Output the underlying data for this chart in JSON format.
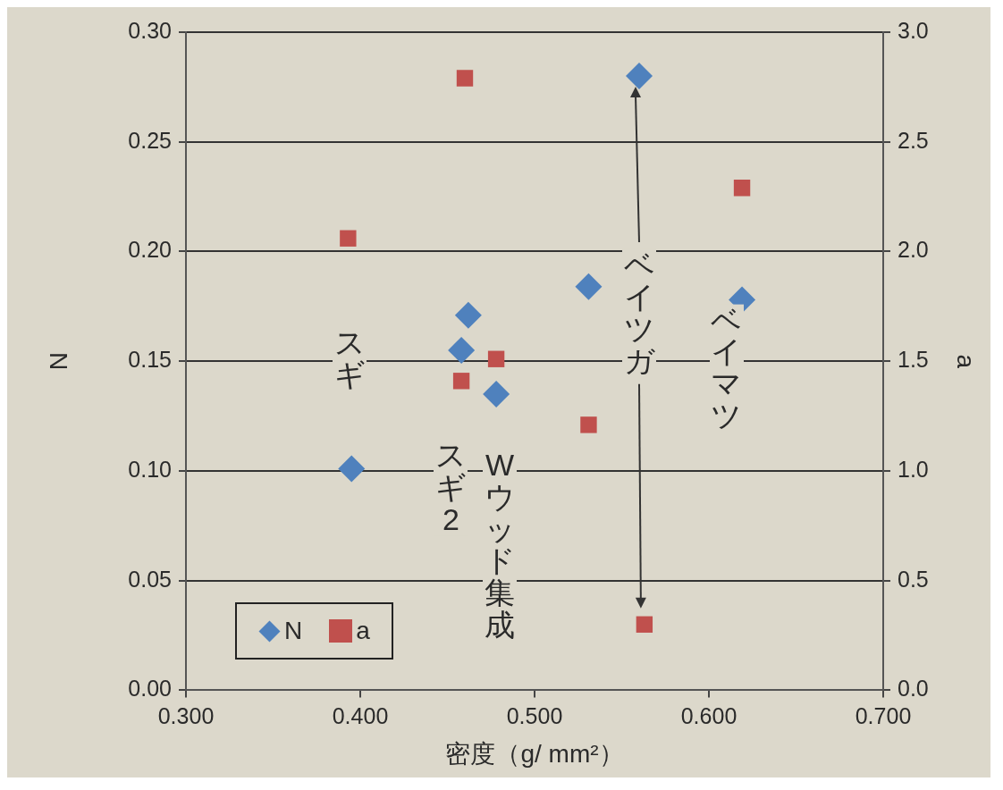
{
  "chart_data": {
    "type": "scatter",
    "xlabel": "密度（g/ mm²）",
    "ylabel": "N",
    "y2label": "a",
    "series": [
      {
        "name": "N",
        "color": "#4f81bd",
        "marker": "diamond",
        "x": [
          0.395,
          0.462,
          0.458,
          0.478,
          0.531,
          0.56,
          0.619
        ],
        "values": [
          0.101,
          0.171,
          0.155,
          0.135,
          0.184,
          0.28,
          0.178
        ]
      },
      {
        "name": "a",
        "color": "#c0504d",
        "marker": "square",
        "axis": "y2",
        "x": [
          0.393,
          0.46,
          0.458,
          0.478,
          0.531,
          0.563,
          0.619
        ],
        "values": [
          2.06,
          2.79,
          1.41,
          1.51,
          1.21,
          0.3,
          2.29
        ]
      }
    ],
    "xlim": [
      0.3,
      0.7
    ],
    "xticks": [
      {
        "value": 0.3,
        "label": "0.300"
      },
      {
        "value": 0.4,
        "label": "0.400"
      },
      {
        "value": 0.5,
        "label": "0.500"
      },
      {
        "value": 0.6,
        "label": "0.600"
      },
      {
        "value": 0.7,
        "label": "0.700"
      }
    ],
    "ylim": [
      0,
      0.3
    ],
    "yticks": [
      {
        "value": 0,
        "label": "0.00"
      },
      {
        "value": 0.05,
        "label": "0.05"
      },
      {
        "value": 0.1,
        "label": "0.10"
      },
      {
        "value": 0.15,
        "label": "0.15"
      },
      {
        "value": 0.2,
        "label": "0.20"
      },
      {
        "value": 0.25,
        "label": "0.25"
      },
      {
        "value": 0.3,
        "label": "0.30"
      }
    ],
    "y2lim": [
      0,
      3
    ],
    "y2ticks": [
      {
        "value": 0,
        "label": "0.0"
      },
      {
        "value": 0.5,
        "label": "0.5"
      },
      {
        "value": 1,
        "label": "1.0"
      },
      {
        "value": 1.5,
        "label": "1.5"
      },
      {
        "value": 2,
        "label": "2.0"
      },
      {
        "value": 2.5,
        "label": "2.5"
      },
      {
        "value": 3,
        "label": "3.0"
      }
    ],
    "grid": "y",
    "legend": "bottom left",
    "annotations": [
      "スギ",
      "スギ2",
      "Wウッド集成",
      "ベイツガ",
      "ベイマツ"
    ]
  }
}
